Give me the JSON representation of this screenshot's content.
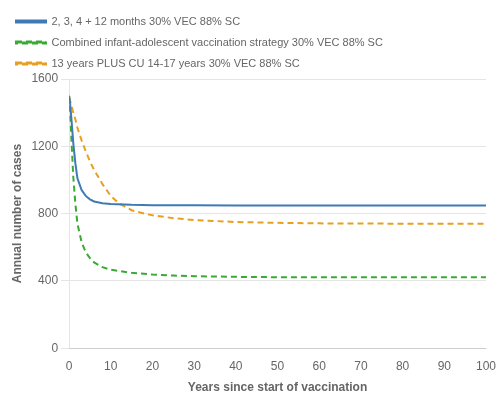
{
  "chart_data": {
    "type": "line",
    "xlabel": "Years since start of vaccination",
    "ylabel": "Annual number of cases",
    "xlim": [
      0,
      100
    ],
    "ylim": [
      0,
      1600
    ],
    "xticks": [
      0,
      10,
      20,
      30,
      40,
      50,
      60,
      70,
      80,
      90,
      100
    ],
    "yticks": [
      0,
      400,
      800,
      1200,
      1600
    ],
    "grid": true,
    "legend": "top",
    "series": [
      {
        "name": "2, 3, 4 + 12 months 30% VEC 88% SC",
        "color": "#3f7ab5",
        "line_style": "solid",
        "x": [
          0,
          0.3,
          0.6,
          1,
          1.5,
          2,
          3,
          4,
          5,
          6,
          8,
          10,
          15,
          20,
          30,
          40,
          50,
          60,
          70,
          80,
          90,
          100
        ],
        "values": [
          1500,
          1440,
          1350,
          1220,
          1100,
          1010,
          940,
          905,
          885,
          872,
          862,
          857,
          852,
          850,
          849,
          848,
          848,
          848,
          848,
          848,
          848,
          848
        ]
      },
      {
        "name": "Combined infant-adolescent vaccination strategy 30% VEC 88% SC",
        "color": "#3aaa35",
        "line_style": "dashed",
        "x": [
          0,
          0.3,
          0.6,
          1,
          1.5,
          2,
          3,
          4,
          5,
          6,
          8,
          10,
          15,
          20,
          25,
          30,
          40,
          50,
          60,
          70,
          80,
          90,
          100
        ],
        "values": [
          1500,
          1380,
          1220,
          1020,
          860,
          740,
          630,
          570,
          535,
          510,
          482,
          466,
          448,
          438,
          432,
          428,
          424,
          422,
          421,
          421,
          421,
          421,
          421
        ]
      },
      {
        "name": "13 years PLUS CU 14-17 years 30% VEC 88% SC",
        "color": "#e8a020",
        "line_style": "dashed",
        "x": [
          0,
          0.3,
          0.6,
          1,
          1.5,
          2,
          3,
          4,
          5,
          6,
          8,
          10,
          12,
          15,
          18,
          20,
          25,
          30,
          40,
          50,
          60,
          70,
          80,
          90,
          100
        ],
        "values": [
          1490,
          1465,
          1440,
          1400,
          1360,
          1310,
          1235,
          1170,
          1110,
          1060,
          975,
          905,
          860,
          820,
          800,
          790,
          773,
          762,
          750,
          745,
          742,
          741,
          740,
          740,
          740
        ]
      }
    ]
  }
}
